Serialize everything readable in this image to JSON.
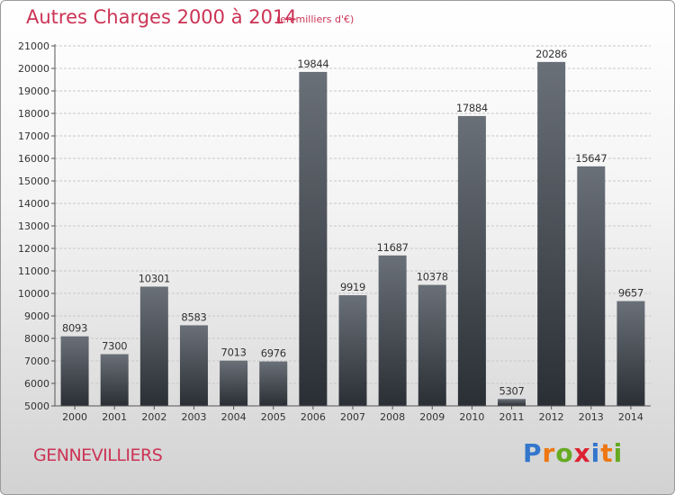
{
  "title": "Autres Charges 2000 à 2014",
  "subtitle": "(en milliers d'€)",
  "commune": "GENNEVILLIERS",
  "logo": {
    "letters": [
      "P",
      "r",
      "o",
      "x",
      "i",
      "t",
      "i"
    ],
    "colors": [
      "#3377cc",
      "#ee7711",
      "#66aa22",
      "#dd2233",
      "#3377cc",
      "#ee7711",
      "#66aa22"
    ]
  },
  "colors": {
    "title": "#cc3355",
    "bar_top": "#6a7078",
    "bar_bottom": "#2a2f35",
    "grid": "#c8c8c8"
  },
  "chart_data": {
    "type": "bar",
    "categories": [
      "2000",
      "2001",
      "2002",
      "2003",
      "2004",
      "2005",
      "2006",
      "2007",
      "2008",
      "2009",
      "2010",
      "2011",
      "2012",
      "2013",
      "2014"
    ],
    "values": [
      8093,
      7300,
      10301,
      8583,
      7013,
      6976,
      19844,
      9919,
      11687,
      10378,
      17884,
      5307,
      20286,
      15647,
      9657
    ],
    "ylim": [
      5000,
      21000
    ],
    "yticks": [
      5000,
      6000,
      7000,
      8000,
      9000,
      10000,
      11000,
      12000,
      13000,
      14000,
      15000,
      16000,
      17000,
      18000,
      19000,
      20000,
      21000
    ],
    "grid": true,
    "data_labels": true
  }
}
